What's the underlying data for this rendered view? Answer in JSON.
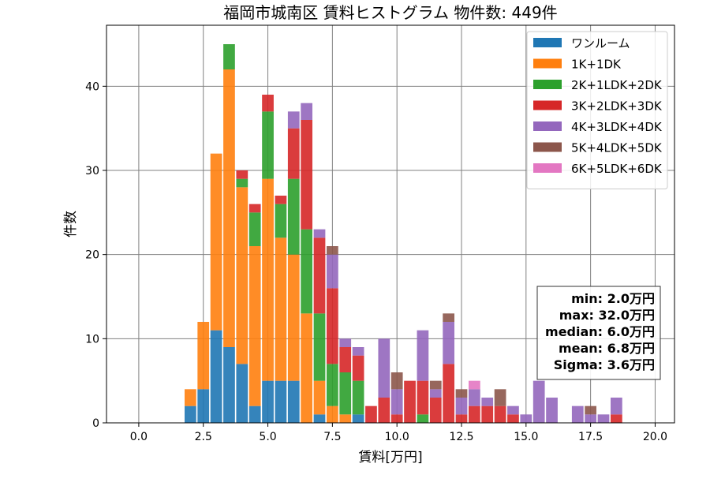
{
  "chart_data": {
    "type": "bar",
    "stacked": true,
    "title": "福岡市城南区 賃料ヒストグラム 物件数: 449件",
    "xlabel": "賃料[万円]",
    "ylabel": "件数",
    "xlim": [
      -1.25,
      20.75
    ],
    "ylim": [
      0,
      47.25
    ],
    "xticks": [
      0.0,
      2.5,
      5.0,
      7.5,
      10.0,
      12.5,
      15.0,
      17.5,
      20.0
    ],
    "xtick_labels": [
      "0.0",
      "2.5",
      "5.0",
      "7.5",
      "10.0",
      "12.5",
      "15.0",
      "17.5",
      "20.0"
    ],
    "yticks": [
      0,
      10,
      20,
      30,
      40
    ],
    "ytick_labels": [
      "0",
      "10",
      "20",
      "30",
      "40"
    ],
    "grid": true,
    "legend_position": "top-right",
    "bin_width": 0.5,
    "x": [
      2.0,
      2.5,
      3.0,
      3.5,
      4.0,
      4.5,
      5.0,
      5.5,
      6.0,
      6.5,
      7.0,
      7.5,
      8.0,
      8.5,
      9.0,
      9.5,
      10.0,
      10.5,
      11.0,
      11.5,
      12.0,
      12.5,
      13.0,
      13.5,
      14.0,
      14.5,
      15.0,
      15.5,
      16.0,
      16.5,
      17.0,
      17.5,
      18.0,
      18.5
    ],
    "series": [
      {
        "name": "ワンルーム",
        "color": "#1f77b4",
        "values": [
          2,
          4,
          11,
          9,
          7,
          2,
          5,
          5,
          5,
          0,
          1,
          0,
          0,
          1,
          0,
          0,
          0,
          0,
          0,
          0,
          0,
          0,
          0,
          0,
          0,
          0,
          0,
          0,
          0,
          0,
          0,
          0,
          0,
          0
        ]
      },
      {
        "name": "1K+1DK",
        "color": "#ff7f0e",
        "values": [
          2,
          8,
          21,
          33,
          21,
          19,
          24,
          17,
          15,
          13,
          4,
          2,
          1,
          0,
          0,
          0,
          0,
          0,
          0,
          0,
          0,
          0,
          0,
          0,
          0,
          0,
          0,
          0,
          0,
          0,
          0,
          0,
          0,
          0
        ]
      },
      {
        "name": "2K+1LDK+2DK",
        "color": "#2ca02c",
        "values": [
          0,
          0,
          0,
          3,
          1,
          4,
          8,
          4,
          9,
          10,
          8,
          5,
          5,
          4,
          0,
          0,
          0,
          0,
          1,
          0,
          0,
          0,
          0,
          0,
          0,
          0,
          0,
          0,
          0,
          0,
          0,
          0,
          0,
          0
        ]
      },
      {
        "name": "3K+2LDK+3DK",
        "color": "#d62728",
        "values": [
          0,
          0,
          0,
          0,
          1,
          1,
          2,
          1,
          6,
          13,
          9,
          9,
          3,
          3,
          2,
          3,
          1,
          5,
          4,
          3,
          7,
          1,
          2,
          2,
          2,
          1,
          0,
          0,
          0,
          0,
          0,
          0,
          0,
          1
        ]
      },
      {
        "name": "4K+3LDK+4DK",
        "color": "#9467bd",
        "values": [
          0,
          0,
          0,
          0,
          0,
          0,
          0,
          0,
          2,
          2,
          1,
          4,
          1,
          1,
          0,
          7,
          3,
          0,
          6,
          1,
          5,
          2,
          2,
          1,
          0,
          1,
          1,
          5,
          3,
          0,
          2,
          1,
          1,
          2
        ]
      },
      {
        "name": "5K+4LDK+5DK",
        "color": "#8c564b",
        "values": [
          0,
          0,
          0,
          0,
          0,
          0,
          0,
          0,
          0,
          0,
          0,
          1,
          0,
          0,
          0,
          0,
          2,
          0,
          0,
          1,
          1,
          1,
          0,
          0,
          2,
          0,
          0,
          0,
          0,
          0,
          0,
          1,
          0,
          0
        ]
      },
      {
        "name": "6K+5LDK+6DK",
        "color": "#e377c2",
        "values": [
          0,
          0,
          0,
          0,
          0,
          0,
          0,
          0,
          0,
          0,
          0,
          0,
          0,
          0,
          0,
          0,
          0,
          0,
          0,
          0,
          0,
          0,
          1,
          0,
          0,
          0,
          0,
          0,
          0,
          0,
          0,
          0,
          0,
          0
        ]
      }
    ],
    "stats": {
      "min": "min: 2.0万円",
      "max": "max: 32.0万円",
      "median": "median: 6.0万円",
      "mean": "mean: 6.8万円",
      "sigma": "Sigma: 3.6万円"
    }
  }
}
